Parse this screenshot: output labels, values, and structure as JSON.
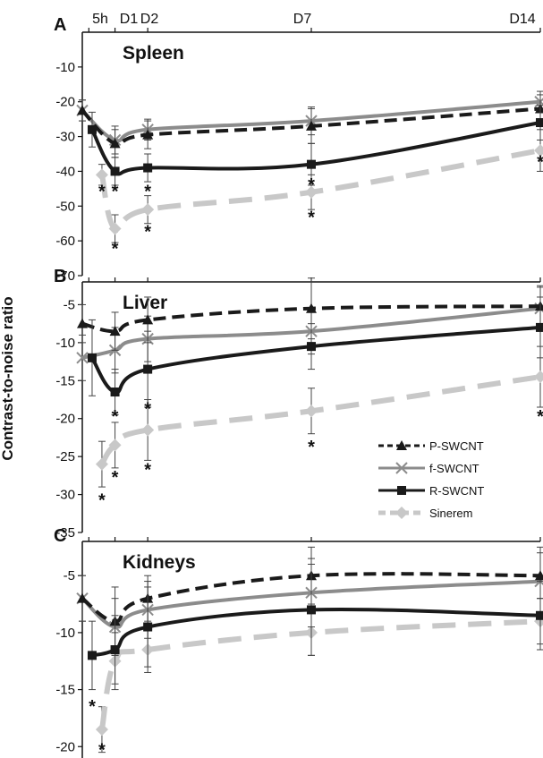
{
  "chart_data": {
    "type": "line",
    "x_tick_labels": [
      "5h",
      "D1",
      "D2",
      "D7",
      "D14"
    ],
    "x_values": [
      0.2,
      1,
      2,
      7,
      14
    ],
    "ylabel": "Contrast-to-noise ratio",
    "series_names": [
      "P-SWCNT",
      "f-SWCNT",
      "R-SWCNT",
      "Sinerem"
    ],
    "series_colors": [
      "#1a1a1a",
      "#8c8c8c",
      "#1a1a1a",
      "#c8c8c8"
    ],
    "series_dash": [
      "14,7",
      "",
      "",
      "26,14"
    ],
    "series_marker": [
      "triangle",
      "x",
      "square",
      "diamond"
    ],
    "legend_position": "lower-right (panel B)",
    "panels": [
      {
        "letter": "A",
        "title": "Spleen",
        "ylim": [
          -70,
          0
        ],
        "yticks": [
          -10,
          -20,
          -30,
          -40,
          -50,
          -60,
          -70
        ],
        "show_x_labels": true,
        "series": [
          {
            "name": "P-SWCNT",
            "x": [
              0,
              1,
              2,
              7,
              14
            ],
            "y": [
              -22.5,
              -32,
              -29.5,
              -27,
              -22
            ],
            "err": [
              3,
              4,
              4,
              5,
              4
            ]
          },
          {
            "name": "f-SWCNT",
            "x": [
              0,
              1,
              2,
              7,
              14
            ],
            "y": [
              -22.5,
              -31,
              -28,
              -25.5,
              -20
            ],
            "err": [
              3,
              4,
              3,
              4,
              3
            ]
          },
          {
            "name": "R-SWCNT",
            "x": [
              0.3,
              1,
              2,
              7,
              14
            ],
            "y": [
              -28,
              -40,
              -39,
              -38,
              -26
            ],
            "err": [
              5,
              4,
              4,
              6,
              5
            ]
          },
          {
            "name": "Sinerem",
            "x": [
              0.6,
              1,
              2,
              7,
              14
            ],
            "y": [
              -41,
              -56.5,
              -51,
              -46,
              -34
            ],
            "err": [
              3,
              4,
              4,
              5,
              6
            ]
          }
        ],
        "stars": [
          {
            "x": 0.6,
            "y": -47.5,
            "label": "*"
          },
          {
            "x": 1,
            "y": -47.5,
            "label": "*"
          },
          {
            "x": 2,
            "y": -47.5,
            "label": "*"
          },
          {
            "x": 7,
            "y": -45.5,
            "label": "*"
          },
          {
            "x": 14,
            "y": -39,
            "label": "*"
          },
          {
            "x": 1,
            "y": -64,
            "label": "*"
          },
          {
            "x": 2,
            "y": -59,
            "label": "*"
          },
          {
            "x": 7,
            "y": -55,
            "label": "*"
          }
        ]
      },
      {
        "letter": "B",
        "title": "Liver",
        "ylim": [
          -35,
          -2
        ],
        "yticks": [
          -5,
          -10,
          -15,
          -20,
          -25,
          -30,
          -35
        ],
        "show_x_labels": false,
        "series": [
          {
            "name": "P-SWCNT",
            "x": [
              0,
              1,
              2,
              7,
              14
            ],
            "y": [
              -7.5,
              -8.5,
              -7,
              -5.5,
              -5.2
            ],
            "err": [
              2.5,
              2.5,
              3,
              4,
              2.5
            ]
          },
          {
            "name": "f-SWCNT",
            "x": [
              0,
              1,
              2,
              7,
              14
            ],
            "y": [
              -12,
              -11,
              -9.5,
              -8.5,
              -5.5
            ],
            "err": [
              3,
              3,
              3,
              3,
              3
            ]
          },
          {
            "name": "R-SWCNT",
            "x": [
              0.3,
              1,
              2,
              7,
              14
            ],
            "y": [
              -12,
              -16.5,
              -13.5,
              -10.5,
              -8
            ],
            "err": [
              5,
              3,
              5,
              3,
              4
            ]
          },
          {
            "name": "Sinerem",
            "x": [
              0.6,
              1,
              2,
              7,
              14
            ],
            "y": [
              -26,
              -23.5,
              -21.5,
              -19,
              -14.5
            ],
            "err": [
              3,
              3,
              4,
              3,
              4
            ]
          }
        ],
        "stars": [
          {
            "x": 1,
            "y": -20.5,
            "label": "*"
          },
          {
            "x": 2,
            "y": -19.5,
            "label": "*"
          },
          {
            "x": 7,
            "y": -24.5,
            "label": "*"
          },
          {
            "x": 14,
            "y": -20.5,
            "label": "*"
          },
          {
            "x": 0.6,
            "y": -31.5,
            "label": "*"
          },
          {
            "x": 1,
            "y": -28.5,
            "label": "*"
          },
          {
            "x": 2,
            "y": -27.5,
            "label": "*"
          }
        ]
      },
      {
        "letter": "C",
        "title": "Kidneys",
        "ylim": [
          -21,
          -2
        ],
        "yticks": [
          -5,
          -10,
          -15,
          -20
        ],
        "show_x_labels": false,
        "series": [
          {
            "name": "P-SWCNT",
            "x": [
              0,
              1,
              2,
              7,
              14
            ],
            "y": [
              -7,
              -9,
              -7,
              -5,
              -5
            ],
            "err": [
              2,
              3,
              2,
              2.5,
              2
            ]
          },
          {
            "name": "f-SWCNT",
            "x": [
              0,
              1,
              2,
              7,
              14
            ],
            "y": [
              -7,
              -9.5,
              -8,
              -6.5,
              -5.5
            ],
            "err": [
              2,
              2.5,
              2.5,
              3,
              3
            ]
          },
          {
            "name": "R-SWCNT",
            "x": [
              0.3,
              1,
              2,
              7,
              14
            ],
            "y": [
              -12,
              -11.5,
              -9.5,
              -8,
              -8.5
            ],
            "err": [
              3,
              3,
              3.5,
              4,
              3
            ]
          },
          {
            "name": "Sinerem",
            "x": [
              0.6,
              1,
              2,
              7,
              14
            ],
            "y": [
              -18.5,
              -12.5,
              -11.5,
              -10,
              -9
            ],
            "err": [
              2,
              2.5,
              2,
              2,
              2
            ]
          }
        ],
        "stars": [
          {
            "x": 0.3,
            "y": -17,
            "label": "*"
          },
          {
            "x": 0.6,
            "y": -20.8,
            "label": "*"
          }
        ]
      }
    ]
  }
}
